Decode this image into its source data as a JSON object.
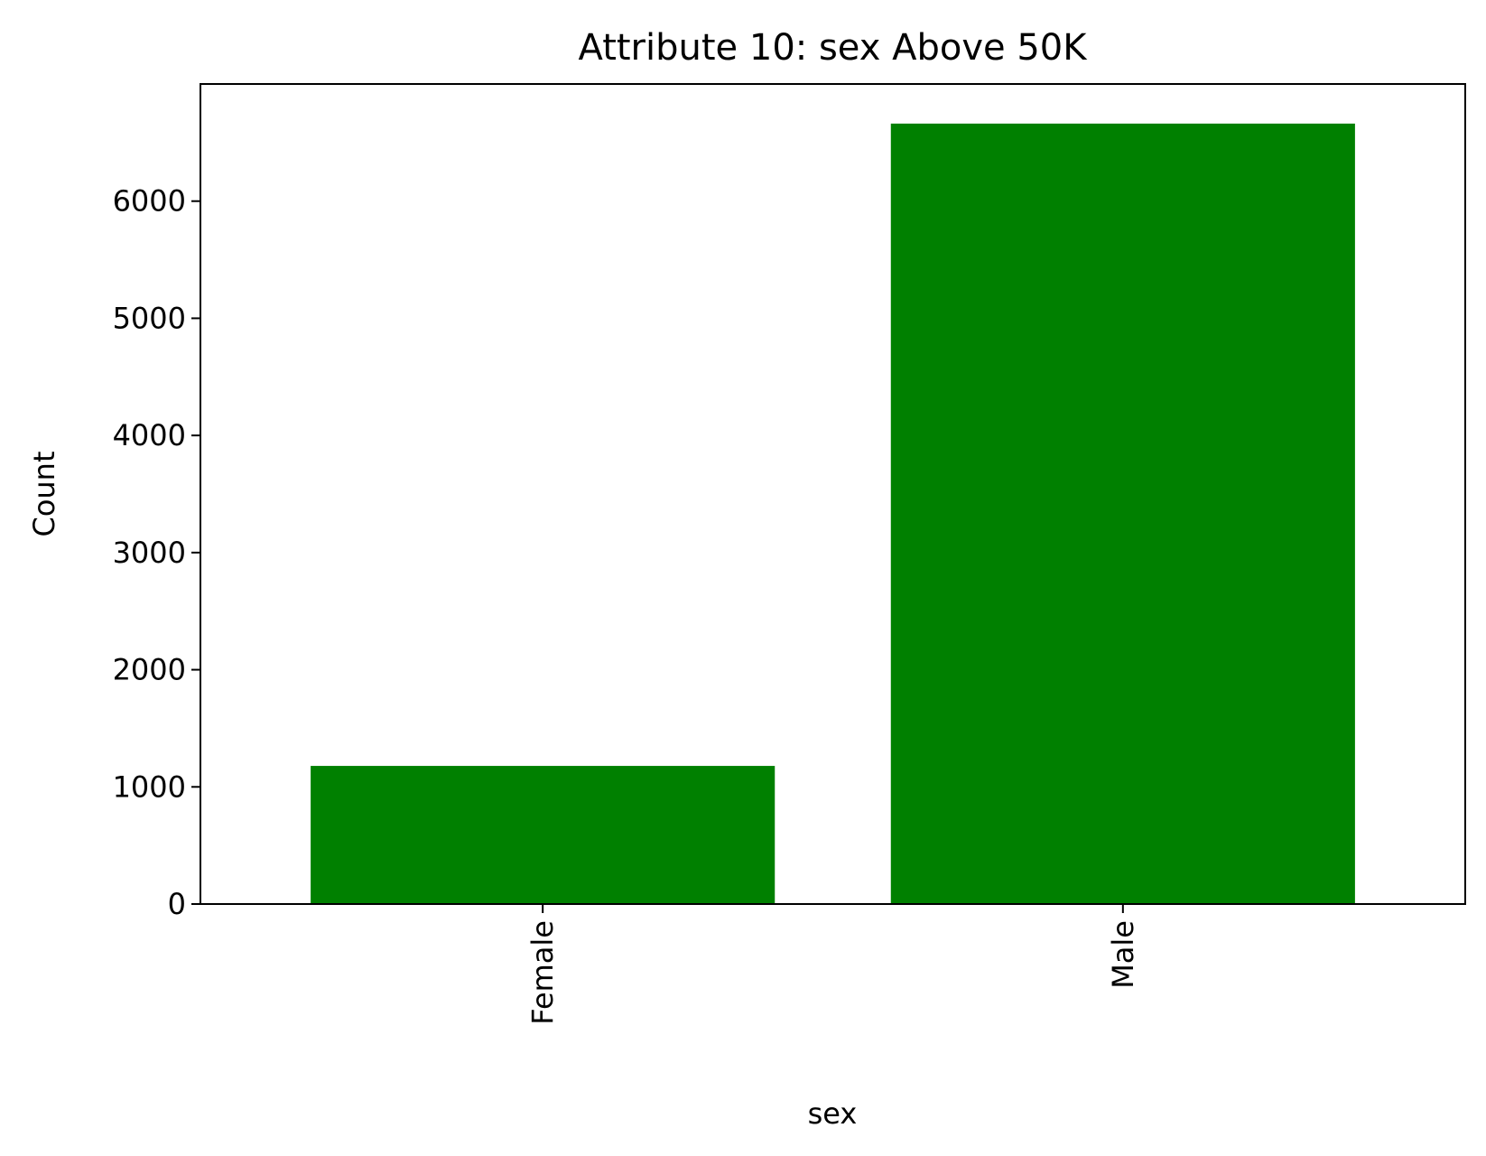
{
  "chart_data": {
    "type": "bar",
    "title": "Attribute 10: sex Above 50K",
    "xlabel": "sex",
    "ylabel": "Count",
    "categories": [
      "Female",
      "Male"
    ],
    "values": [
      1179,
      6662
    ],
    "ylim": [
      0,
      7000
    ],
    "yticks": [
      0,
      1000,
      2000,
      3000,
      4000,
      5000,
      6000
    ],
    "ytick_labels": [
      "0",
      "1000",
      "2000",
      "3000",
      "4000",
      "5000",
      "6000"
    ],
    "bar_color": "#008000",
    "grid": false,
    "legend": false
  }
}
